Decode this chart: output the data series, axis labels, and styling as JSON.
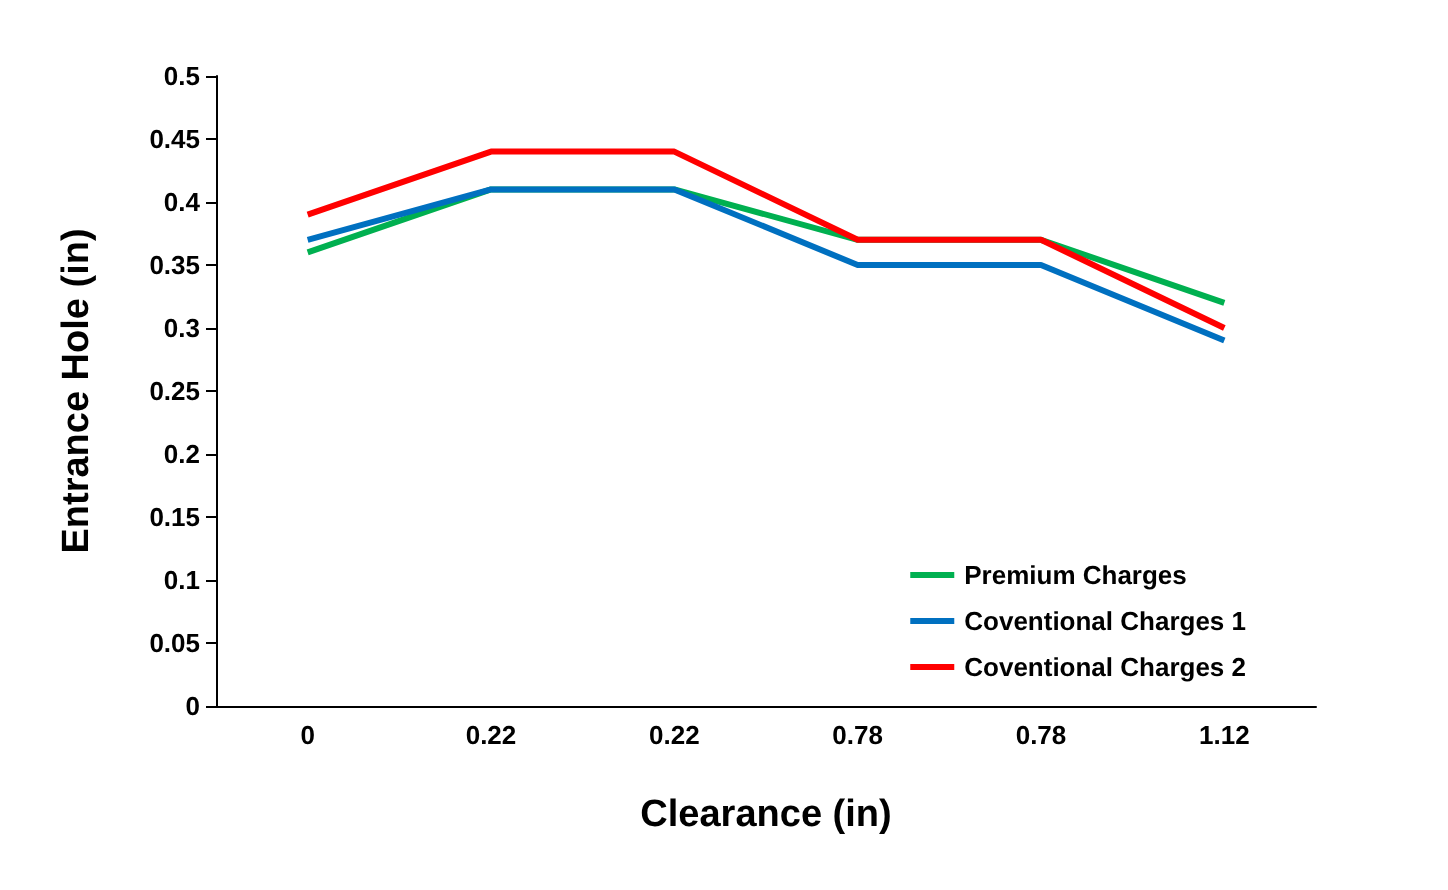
{
  "chart_data": {
    "type": "line",
    "xlabel": "Clearance (in)",
    "ylabel": "Entrance Hole (in)",
    "categories": [
      "0",
      "0.22",
      "0.22",
      "0.78",
      "0.78",
      "1.12"
    ],
    "series": [
      {
        "name": "Premium Charges",
        "color": "#00b050",
        "values": [
          0.36,
          0.41,
          0.41,
          0.37,
          0.37,
          0.32
        ]
      },
      {
        "name": "Coventional Charges 1",
        "color": "#0070c0",
        "values": [
          0.37,
          0.41,
          0.41,
          0.35,
          0.35,
          0.29
        ]
      },
      {
        "name": "Coventional Charges 2",
        "color": "#ff0000",
        "values": [
          0.39,
          0.44,
          0.44,
          0.37,
          0.37,
          0.3
        ]
      }
    ],
    "ylim": [
      0,
      0.5
    ],
    "yticks": [
      0,
      0.05,
      0.1,
      0.15,
      0.2,
      0.25,
      0.3,
      0.35,
      0.4,
      0.45,
      0.5
    ],
    "grid": false,
    "legend": "bottom right",
    "marker": "none",
    "line_style": "solid"
  }
}
